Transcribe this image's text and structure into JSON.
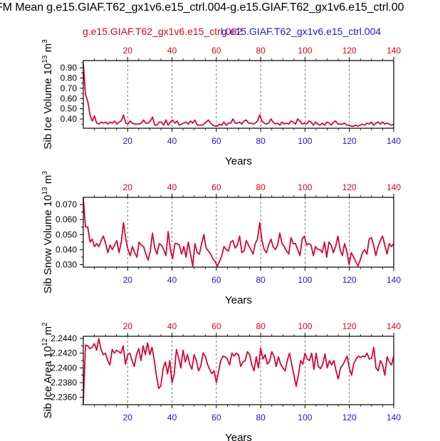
{
  "title": "FM Mean g.e15.GIAF.T62_gx1v6.e15_ctrl.004-g.e15.GIAF.T62_gx1v6.e15_ctrl.00",
  "legend": [
    {
      "label": "g.e15.GIAF.T62_gx1v6.e15_ctrl.002",
      "color": "#e8001c"
    },
    {
      "label": "g.e15.GIAF.T62_gx1v6.e15_ctrl.004",
      "color": "#1c18e0"
    }
  ],
  "chart_data": [
    {
      "type": "line",
      "ylabel": "Sib Ice Volume 10",
      "ylabel_exp": "13",
      "ylabel_unit": " m",
      "ylabel_unit_exp": "3",
      "xlabel": "Years",
      "xlim": [
        0,
        140
      ],
      "ylim": [
        0.31,
        0.97
      ],
      "xticks": [
        20,
        40,
        60,
        80,
        100,
        120,
        140
      ],
      "yticks": [
        0.4,
        0.5,
        0.6,
        0.7,
        0.8,
        0.9
      ],
      "ytick_labels": [
        "0.40",
        "0.50",
        "0.60",
        "0.70",
        "0.80",
        "0.90"
      ],
      "top_tick_color": "#e8001c",
      "bottom_tick_color": "#1c18e0",
      "series": [
        {
          "name": "g.e15.GIAF.T62_gx1v6.e15_ctrl.002",
          "color": "#e8001c",
          "values": [
            0.94,
            0.64,
            0.57,
            0.44,
            0.38,
            0.43,
            0.36,
            0.35,
            0.37,
            0.36,
            0.37,
            0.35,
            0.37,
            0.36,
            0.38,
            0.35,
            0.37,
            0.38,
            0.44,
            0.36,
            0.35,
            0.38,
            0.36,
            0.35,
            0.35,
            0.35,
            0.36,
            0.39,
            0.36,
            0.36,
            0.38,
            0.42,
            0.34,
            0.34,
            0.37,
            0.37,
            0.34,
            0.39,
            0.34,
            0.37,
            0.39,
            0.36,
            0.38,
            0.34,
            0.35,
            0.36,
            0.37,
            0.35,
            0.38,
            0.36,
            0.39,
            0.34,
            0.34,
            0.34,
            0.35,
            0.37,
            0.39,
            0.36,
            0.34,
            0.33,
            0.33,
            0.35,
            0.34,
            0.37,
            0.34,
            0.36,
            0.36,
            0.4,
            0.36,
            0.36,
            0.37,
            0.35,
            0.38,
            0.39,
            0.36,
            0.36,
            0.35,
            0.36,
            0.38,
            0.44,
            0.38,
            0.36,
            0.35,
            0.36,
            0.4,
            0.37,
            0.35,
            0.36,
            0.34,
            0.37,
            0.35,
            0.36,
            0.35,
            0.38,
            0.37,
            0.35,
            0.4,
            0.38,
            0.35,
            0.36,
            0.35,
            0.38,
            0.37,
            0.34,
            0.37,
            0.35,
            0.34,
            0.36,
            0.34,
            0.37,
            0.36,
            0.34,
            0.37,
            0.38,
            0.35,
            0.35,
            0.35,
            0.36,
            0.34,
            0.34,
            0.33,
            0.33,
            0.34,
            0.33,
            0.34,
            0.35,
            0.34,
            0.36,
            0.35,
            0.37,
            0.34,
            0.36,
            0.37,
            0.35,
            0.37,
            0.35,
            0.36,
            0.35,
            0.34,
            0.35
          ]
        },
        {
          "name": "g.e15.GIAF.T62_gx1v6.e15_ctrl.004",
          "color": "#1c18e0",
          "values": [
            0.94,
            0.64,
            0.57,
            0.44,
            0.38,
            0.43,
            0.36,
            0.35,
            0.37,
            0.36,
            0.37,
            0.35,
            0.37,
            0.36,
            0.38,
            0.35,
            0.37,
            0.38,
            0.44,
            0.36,
            0.35,
            0.38,
            0.36,
            0.35,
            0.35,
            0.35,
            0.36,
            0.39,
            0.36,
            0.36,
            0.38,
            0.42,
            0.34,
            0.34,
            0.37,
            0.37,
            0.34,
            0.39,
            0.34,
            0.37,
            0.39,
            0.36,
            0.38,
            0.34,
            0.35,
            0.36,
            0.37,
            0.35,
            0.38,
            0.36,
            0.39,
            0.34,
            0.34,
            0.34,
            0.35,
            0.37,
            0.39,
            0.36,
            0.34,
            0.33,
            0.33,
            0.35,
            0.34,
            0.37,
            0.34,
            0.36,
            0.36,
            0.4,
            0.36,
            0.36,
            0.37,
            0.35,
            0.38,
            0.39,
            0.36,
            0.36,
            0.35,
            0.36,
            0.38,
            0.44,
            0.38,
            0.36,
            0.35,
            0.36,
            0.4,
            0.37,
            0.35,
            0.36,
            0.34,
            0.37,
            0.35,
            0.36,
            0.35,
            0.38,
            0.37,
            0.35,
            0.4,
            0.38,
            0.35,
            0.36,
            0.35,
            0.38,
            0.37,
            0.34,
            0.37,
            0.35,
            0.34,
            0.36,
            0.34,
            0.37,
            0.36,
            0.34,
            0.37,
            0.38,
            0.35,
            0.35,
            0.35,
            0.36,
            0.34,
            0.34,
            0.33,
            0.33,
            0.34,
            0.33,
            0.34,
            0.35,
            0.34,
            0.36,
            0.35,
            0.37,
            0.34,
            0.36,
            0.37,
            0.35,
            0.37,
            0.35,
            0.36,
            0.35,
            0.34,
            0.35
          ]
        }
      ]
    },
    {
      "type": "line",
      "ylabel": "Sib Snow Volume 10",
      "ylabel_exp": "13",
      "ylabel_unit": " m",
      "ylabel_unit_exp": "3",
      "xlabel": "Years",
      "xlim": [
        0,
        140
      ],
      "ylim": [
        0.0283,
        0.0748
      ],
      "xticks": [
        20,
        40,
        60,
        80,
        100,
        120,
        140
      ],
      "yticks": [
        0.03,
        0.04,
        0.05,
        0.06,
        0.07
      ],
      "ytick_labels": [
        "0.030",
        "0.040",
        "0.050",
        "0.060",
        "0.070"
      ],
      "top_tick_color": "#e8001c",
      "bottom_tick_color": "#1c18e0",
      "series": [
        {
          "name": "g.e15.GIAF.T62_gx1v6.e15_ctrl.002",
          "color": "#e8001c",
          "values": [
            0.074,
            0.055,
            0.055,
            0.045,
            0.047,
            0.042,
            0.044,
            0.042,
            0.046,
            0.049,
            0.044,
            0.038,
            0.043,
            0.04,
            0.043,
            0.046,
            0.038,
            0.045,
            0.058,
            0.047,
            0.04,
            0.036,
            0.042,
            0.038,
            0.035,
            0.045,
            0.043,
            0.042,
            0.037,
            0.033,
            0.039,
            0.051,
            0.041,
            0.037,
            0.044,
            0.043,
            0.04,
            0.036,
            0.052,
            0.04,
            0.034,
            0.044,
            0.044,
            0.043,
            0.037,
            0.042,
            0.035,
            0.045,
            0.037,
            0.029,
            0.044,
            0.038,
            0.037,
            0.044,
            0.05,
            0.041,
            0.039,
            0.037,
            0.034,
            0.032,
            0.029,
            0.032,
            0.036,
            0.042,
            0.04,
            0.039,
            0.045,
            0.046,
            0.041,
            0.043,
            0.049,
            0.038,
            0.039,
            0.046,
            0.043,
            0.04,
            0.037,
            0.044,
            0.047,
            0.058,
            0.046,
            0.04,
            0.038,
            0.043,
            0.047,
            0.042,
            0.04,
            0.043,
            0.051,
            0.044,
            0.042,
            0.039,
            0.037,
            0.048,
            0.044,
            0.044,
            0.04,
            0.036,
            0.047,
            0.049,
            0.043,
            0.044,
            0.043,
            0.036,
            0.042,
            0.04,
            0.04,
            0.038,
            0.045,
            0.035,
            0.045,
            0.043,
            0.038,
            0.042,
            0.049,
            0.04,
            0.036,
            0.044,
            0.039,
            0.03,
            0.038,
            0.035,
            0.032,
            0.029,
            0.033,
            0.038,
            0.04,
            0.037,
            0.047,
            0.048,
            0.043,
            0.036,
            0.042,
            0.046,
            0.049,
            0.043,
            0.037,
            0.044,
            0.042,
            0.044
          ]
        },
        {
          "name": "g.e15.GIAF.T62_gx1v6.e15_ctrl.004",
          "color": "#1c18e0",
          "values": [
            0.074,
            0.055,
            0.055,
            0.045,
            0.047,
            0.042,
            0.044,
            0.042,
            0.046,
            0.049,
            0.044,
            0.038,
            0.043,
            0.04,
            0.043,
            0.046,
            0.038,
            0.045,
            0.058,
            0.047,
            0.04,
            0.036,
            0.042,
            0.038,
            0.035,
            0.045,
            0.043,
            0.042,
            0.037,
            0.033,
            0.039,
            0.051,
            0.041,
            0.037,
            0.044,
            0.043,
            0.04,
            0.036,
            0.052,
            0.04,
            0.034,
            0.044,
            0.044,
            0.043,
            0.037,
            0.042,
            0.035,
            0.045,
            0.037,
            0.029,
            0.044,
            0.038,
            0.037,
            0.044,
            0.05,
            0.041,
            0.039,
            0.037,
            0.034,
            0.032,
            0.029,
            0.032,
            0.036,
            0.042,
            0.04,
            0.039,
            0.045,
            0.046,
            0.041,
            0.043,
            0.049,
            0.038,
            0.039,
            0.046,
            0.043,
            0.04,
            0.037,
            0.044,
            0.047,
            0.058,
            0.046,
            0.04,
            0.038,
            0.043,
            0.047,
            0.042,
            0.04,
            0.043,
            0.051,
            0.044,
            0.042,
            0.039,
            0.037,
            0.048,
            0.044,
            0.044,
            0.04,
            0.036,
            0.047,
            0.049,
            0.043,
            0.044,
            0.043,
            0.036,
            0.042,
            0.04,
            0.04,
            0.038,
            0.045,
            0.035,
            0.045,
            0.043,
            0.038,
            0.042,
            0.049,
            0.04,
            0.036,
            0.044,
            0.039,
            0.03,
            0.038,
            0.035,
            0.032,
            0.029,
            0.033,
            0.038,
            0.04,
            0.037,
            0.047,
            0.048,
            0.043,
            0.036,
            0.042,
            0.046,
            0.049,
            0.043,
            0.037,
            0.044,
            0.042,
            0.044
          ]
        }
      ]
    },
    {
      "type": "line",
      "ylabel": "Sib Ice Area 10",
      "ylabel_exp": "12",
      "ylabel_unit": " m",
      "ylabel_unit_exp": "2",
      "xlabel": "Years",
      "xlim": [
        0,
        140
      ],
      "ylim": [
        2.235,
        2.2443
      ],
      "xticks": [
        20,
        40,
        60,
        80,
        100,
        120,
        140
      ],
      "yticks": [
        2.236,
        2.238,
        2.24,
        2.242,
        2.244
      ],
      "ytick_labels": [
        "2.2360",
        "2.2380",
        "2.2400",
        "2.2420",
        "2.2440"
      ],
      "top_tick_color": "#e8001c",
      "bottom_tick_color": "#1c18e0",
      "series": [
        {
          "name": "g.e15.GIAF.T62_gx1v6.e15_ctrl.002",
          "color": "#e8001c",
          "values": [
            2.2352,
            2.2431,
            2.243,
            2.2426,
            2.2428,
            2.2433,
            2.2424,
            2.244,
            2.2425,
            2.2418,
            2.242,
            2.241,
            2.2404,
            2.2425,
            2.242,
            2.2424,
            2.2422,
            2.242,
            2.243,
            2.2405,
            2.2418,
            2.242,
            2.241,
            2.2402,
            2.2418,
            2.2426,
            2.241,
            2.243,
            2.2418,
            2.2434,
            2.2418,
            2.2428,
            2.241,
            2.2389,
            2.2372,
            2.2376,
            2.2399,
            2.2408,
            2.2392,
            2.241,
            2.238,
            2.2392,
            2.2425,
            2.2414,
            2.24,
            2.2424,
            2.2408,
            2.2418,
            2.2405,
            2.2398,
            2.2418,
            2.241,
            2.2396,
            2.2403,
            2.242,
            2.2416,
            2.2405,
            2.2398,
            2.2392,
            2.2396,
            2.238,
            2.2395,
            2.241,
            2.2416,
            2.2415,
            2.2412,
            2.2404,
            2.242,
            2.2416,
            2.242,
            2.2418,
            2.2402,
            2.2408,
            2.241,
            2.2422,
            2.2418,
            2.2404,
            2.2396,
            2.2415,
            2.24,
            2.2427,
            2.2412,
            2.2418,
            2.2405,
            2.2409,
            2.2422,
            2.2416,
            2.2402,
            2.2415,
            2.2405,
            2.24,
            2.2396,
            2.241,
            2.242,
            2.2405,
            2.239,
            2.2375,
            2.239,
            2.241,
            2.2405,
            2.242,
            2.2412,
            2.241,
            2.242,
            2.2398,
            2.242,
            2.2402,
            2.2399,
            2.2405,
            2.2419,
            2.24,
            2.241,
            2.2404,
            2.241,
            2.2396,
            2.2385,
            2.24,
            2.2404,
            2.241,
            2.2416,
            2.24,
            2.239,
            2.2406,
            2.2412,
            2.2416,
            2.2414,
            2.2416,
            2.2415,
            2.242,
            2.2412,
            2.2413,
            2.2428,
            2.24,
            2.2396,
            2.241,
            2.2404,
            2.239,
            2.2415,
            2.2408,
            2.2404,
            2.2416
          ]
        },
        {
          "name": "g.e15.GIAF.T62_gx1v6.e15_ctrl.004",
          "color": "#1c18e0",
          "values": [
            2.2352,
            2.2431,
            2.243,
            2.2426,
            2.2428,
            2.2433,
            2.2424,
            2.244,
            2.2425,
            2.2418,
            2.242,
            2.241,
            2.2404,
            2.2425,
            2.242,
            2.2424,
            2.2422,
            2.242,
            2.243,
            2.2405,
            2.2418,
            2.242,
            2.241,
            2.2402,
            2.2418,
            2.2426,
            2.241,
            2.243,
            2.2418,
            2.2434,
            2.2418,
            2.2428,
            2.241,
            2.2389,
            2.2372,
            2.2376,
            2.2399,
            2.2408,
            2.2392,
            2.241,
            2.238,
            2.2392,
            2.2425,
            2.2414,
            2.24,
            2.2424,
            2.2408,
            2.2418,
            2.2405,
            2.2398,
            2.2418,
            2.241,
            2.2396,
            2.2403,
            2.242,
            2.2416,
            2.2405,
            2.2398,
            2.2392,
            2.2396,
            2.238,
            2.2395,
            2.241,
            2.2416,
            2.2415,
            2.2412,
            2.2404,
            2.242,
            2.2416,
            2.242,
            2.2418,
            2.2402,
            2.2408,
            2.241,
            2.2422,
            2.2418,
            2.2404,
            2.2396,
            2.2415,
            2.24,
            2.2427,
            2.2412,
            2.2418,
            2.2405,
            2.2409,
            2.2422,
            2.2416,
            2.2402,
            2.2415,
            2.2405,
            2.24,
            2.2396,
            2.241,
            2.242,
            2.2405,
            2.239,
            2.2375,
            2.239,
            2.241,
            2.2405,
            2.242,
            2.2412,
            2.241,
            2.242,
            2.2398,
            2.242,
            2.2402,
            2.2399,
            2.2405,
            2.2419,
            2.24,
            2.241,
            2.2404,
            2.241,
            2.2396,
            2.2385,
            2.24,
            2.2404,
            2.241,
            2.2416,
            2.24,
            2.239,
            2.2406,
            2.2412,
            2.2416,
            2.2414,
            2.2416,
            2.2415,
            2.242,
            2.2412,
            2.2413,
            2.2428,
            2.24,
            2.2396,
            2.241,
            2.2404,
            2.239,
            2.2415,
            2.2408,
            2.2404,
            2.2416
          ]
        }
      ]
    }
  ]
}
